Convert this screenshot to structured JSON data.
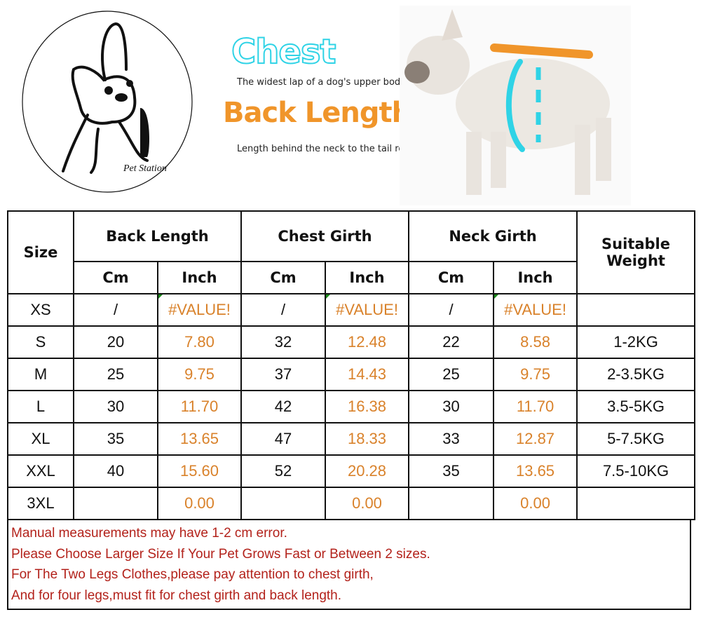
{
  "logo": {
    "text": "Pet Station"
  },
  "header": {
    "chest_title": "Chest",
    "chest_desc": "The widest lap of a dog's upper body.",
    "back_title": "Back Length",
    "back_desc": "Length behind the neck to the tail root."
  },
  "colors": {
    "chest": "#2fd3e6",
    "back": "#f0952a",
    "inch_values": "#d9822b",
    "notes": "#b3221b"
  },
  "table": {
    "headers": {
      "size": "Size",
      "back": "Back Length",
      "chest": "Chest Girth",
      "neck": "Neck Girth",
      "weight": "Suitable Weight",
      "cm": "Cm",
      "inch": "Inch"
    },
    "rows": [
      {
        "size": "XS",
        "back_cm": "/",
        "back_in": "#VALUE!",
        "chest_cm": "/",
        "chest_in": "#VALUE!",
        "neck_cm": "/",
        "neck_in": "#VALUE!",
        "weight": ""
      },
      {
        "size": "S",
        "back_cm": "20",
        "back_in": "7.80",
        "chest_cm": "32",
        "chest_in": "12.48",
        "neck_cm": "22",
        "neck_in": "8.58",
        "weight": "1-2KG"
      },
      {
        "size": "M",
        "back_cm": "25",
        "back_in": "9.75",
        "chest_cm": "37",
        "chest_in": "14.43",
        "neck_cm": "25",
        "neck_in": "9.75",
        "weight": "2-3.5KG"
      },
      {
        "size": "L",
        "back_cm": "30",
        "back_in": "11.70",
        "chest_cm": "42",
        "chest_in": "16.38",
        "neck_cm": "30",
        "neck_in": "11.70",
        "weight": "3.5-5KG"
      },
      {
        "size": "XL",
        "back_cm": "35",
        "back_in": "13.65",
        "chest_cm": "47",
        "chest_in": "18.33",
        "neck_cm": "33",
        "neck_in": "12.87",
        "weight": "5-7.5KG"
      },
      {
        "size": "XXL",
        "back_cm": "40",
        "back_in": "15.60",
        "chest_cm": "52",
        "chest_in": "20.28",
        "neck_cm": "35",
        "neck_in": "13.65",
        "weight": "7.5-10KG"
      },
      {
        "size": "3XL",
        "back_cm": "",
        "back_in": "0.00",
        "chest_cm": "",
        "chest_in": "0.00",
        "neck_cm": "",
        "neck_in": "0.00",
        "weight": ""
      }
    ]
  },
  "notes": [
    "Manual measurements may have 1-2 cm error.",
    "Please Choose Larger Size If Your Pet Grows Fast or Between 2 sizes.",
    "For The Two Legs Clothes,please pay attention to chest girth,",
    "And for four legs,must fit for chest girth and back length."
  ]
}
